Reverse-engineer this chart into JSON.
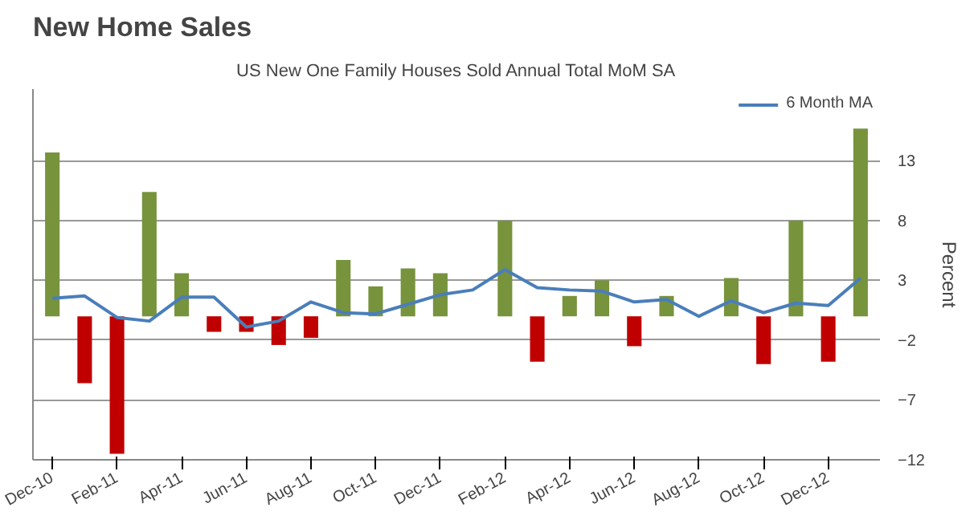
{
  "chart_data": {
    "type": "bar",
    "title": "New Home Sales",
    "subtitle": "US New One Family Houses Sold Annual Total MoM SA",
    "y2label": "Percent",
    "categories": [
      "Dec-10",
      null,
      "Feb-11",
      null,
      "Apr-11",
      null,
      "Jun-11",
      null,
      "Aug-11",
      null,
      "Oct-11",
      null,
      "Dec-11",
      null,
      "Feb-12",
      null,
      "Apr-12",
      null,
      "Jun-12",
      null,
      "Aug-12",
      null,
      "Oct-12",
      null,
      "Dec-12",
      null
    ],
    "series": [
      {
        "axis": "y2",
        "colors": [
          "#77933c",
          "#c00000",
          "#c00000",
          "#77933c",
          "#77933c",
          "#c00000",
          "#c00000",
          "#c00000",
          "#c00000",
          "#77933c",
          "#77933c",
          "#77933c",
          "#77933c",
          "#77933c",
          "#77933c",
          "#c00000",
          "#77933c",
          "#77933c",
          "#c00000",
          "#77933c",
          "#77933c",
          "#77933c",
          "#c00000",
          "#77933c",
          "#c00000",
          "#77933c"
        ],
        "values": [
          13.7,
          -5.6,
          -11.5,
          10.4,
          3.6,
          -1.3,
          -1.3,
          -2.4,
          -1.8,
          4.7,
          2.5,
          4.0,
          3.6,
          0,
          8.0,
          -3.8,
          1.7,
          3.0,
          -2.5,
          1.7,
          0,
          3.2,
          -4.0,
          8.0,
          -3.8,
          15.7
        ]
      },
      {
        "type": "line",
        "axis": "y2",
        "name": "6 Month MA",
        "color": "#4a7ebb",
        "values": [
          1.5,
          1.7,
          -0.1,
          -0.4,
          1.6,
          1.6,
          -0.9,
          -0.4,
          1.2,
          0.3,
          0.2,
          1.0,
          1.8,
          2.2,
          3.9,
          2.4,
          2.2,
          2.1,
          1.2,
          1.4,
          0.0,
          1.3,
          0.3,
          1.1,
          0.9,
          3.2
        ]
      }
    ],
    "y2lim": [
      -12,
      19
    ],
    "y2ticks": [
      -12,
      -7,
      -2,
      3,
      8,
      13
    ],
    "grid": "y",
    "legend": "top right",
    "marker": "none",
    "line_style": "solid"
  }
}
